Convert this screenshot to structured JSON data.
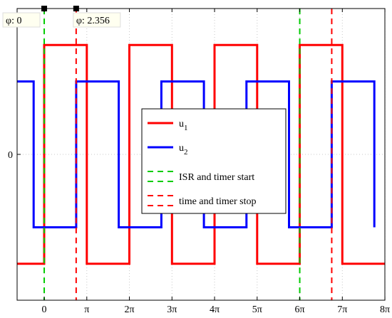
{
  "chart_data": {
    "type": "line",
    "title": "",
    "xlabel": "",
    "ylabel": "",
    "xlim": [
      -2.0,
      25.13
    ],
    "ylim": [
      -1.0,
      1.0
    ],
    "x_ticks": [
      {
        "value": 0,
        "label": "0"
      },
      {
        "value": 3.1416,
        "label": "π"
      },
      {
        "value": 6.2832,
        "label": "2π"
      },
      {
        "value": 9.4248,
        "label": "3π"
      },
      {
        "value": 12.5664,
        "label": "4π"
      },
      {
        "value": 15.708,
        "label": "5π"
      },
      {
        "value": 18.8496,
        "label": "6π"
      },
      {
        "value": 21.9911,
        "label": "7π"
      },
      {
        "value": 25.1327,
        "label": "8π"
      }
    ],
    "y_ticks": [
      {
        "value": 0,
        "label": "0"
      }
    ],
    "grid": true,
    "legend_position": "center",
    "series": [
      {
        "name": "u1",
        "color": "#ff0000",
        "style": "solid",
        "x": [
          -2.0,
          0,
          0,
          3.1416,
          3.1416,
          6.2832,
          6.2832,
          9.4248,
          9.4248,
          12.5664,
          12.5664,
          15.708,
          15.708,
          18.8496,
          18.8496,
          21.9911,
          21.9911,
          25.1327
        ],
        "y": [
          -0.75,
          -0.75,
          0.75,
          0.75,
          -0.75,
          -0.75,
          0.75,
          0.75,
          -0.75,
          -0.75,
          0.75,
          0.75,
          -0.75,
          -0.75,
          0.75,
          0.75,
          -0.75,
          -0.75
        ]
      },
      {
        "name": "u2",
        "color": "#0000ff",
        "style": "solid",
        "x": [
          -2.0,
          -0.78,
          -0.78,
          2.36,
          2.36,
          5.5,
          5.5,
          8.64,
          8.64,
          11.78,
          11.78,
          14.92,
          14.92,
          18.06,
          18.06,
          21.21,
          21.21,
          24.35,
          24.35
        ],
        "y": [
          0.5,
          0.5,
          -0.5,
          -0.5,
          0.5,
          0.5,
          -0.5,
          -0.5,
          0.5,
          0.5,
          -0.5,
          -0.5,
          0.5,
          0.5,
          -0.5,
          -0.5,
          0.5,
          0.5,
          -0.5
        ]
      },
      {
        "name": "ISR and timer start",
        "color": "#00cc00",
        "style": "dashed",
        "vlines": [
          0,
          18.85
        ]
      },
      {
        "name": "time and timer stop",
        "color": "#ff0000",
        "style": "dashed",
        "vlines": [
          2.356,
          21.21
        ]
      }
    ],
    "legend": [
      {
        "label_main": "u",
        "label_sub": "1",
        "color": "#ff0000",
        "style": "solid"
      },
      {
        "label_main": "u",
        "label_sub": "2",
        "color": "#0000ff",
        "style": "solid"
      },
      {
        "label_main": "ISR and timer start",
        "label_sub": "",
        "color": "#00cc00",
        "style": "dashed"
      },
      {
        "label_main": "time and timer stop",
        "label_sub": "",
        "color": "#ff0000",
        "style": "dashed"
      }
    ],
    "phase_markers": [
      {
        "x": 0,
        "label": "φ: 0"
      },
      {
        "x": 2.356,
        "label": "φ: 2.356"
      }
    ]
  }
}
